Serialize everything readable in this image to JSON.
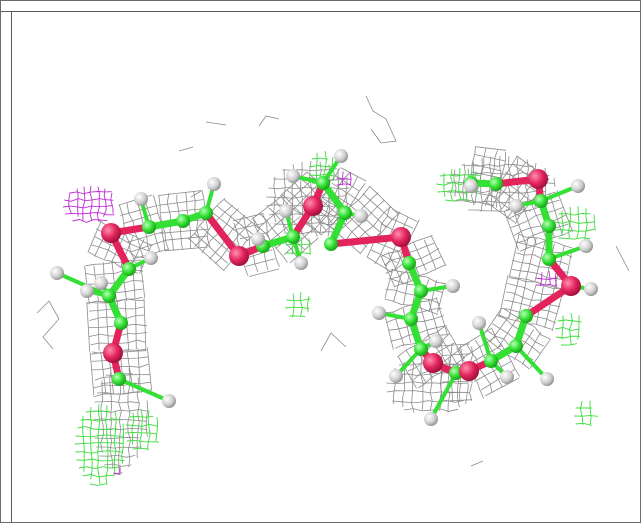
{
  "viewer": {
    "background": "#ffffff",
    "frame_color": "#5a5a5a"
  },
  "colors": {
    "mesh": "#8c8c8c",
    "positive_density": "#3ddc3d",
    "negative_density": "#c02bd8",
    "carbon": "#33e033",
    "oxygen": "#e3245c",
    "hydrogen": "#d6d6d6"
  }
}
